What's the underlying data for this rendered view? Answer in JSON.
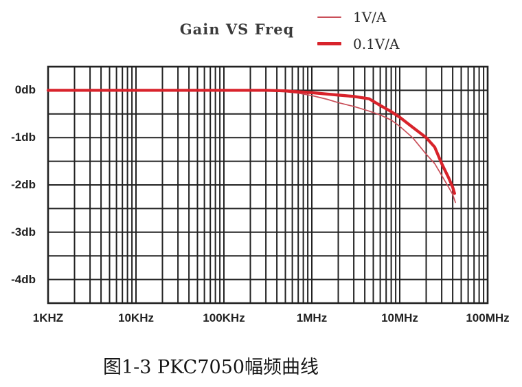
{
  "figure": {
    "caption": "图1-3 PKC7050幅频曲线"
  },
  "chart_data": {
    "type": "line",
    "title": "Gain VS Freq",
    "xlabel": "",
    "ylabel": "",
    "x_scale": "log",
    "xlim": [
      1000,
      100000000
    ],
    "ylim": [
      -4.5,
      0.5
    ],
    "grid": "on",
    "grid_step_db": 0.5,
    "grid_color": "#222222",
    "legend_position": "top-right",
    "x_ticks": [
      {
        "f": 1000,
        "label": "1KHZ"
      },
      {
        "f": 10000,
        "label": "10KHz"
      },
      {
        "f": 100000,
        "label": "100KHz"
      },
      {
        "f": 1000000,
        "label": "1MHz"
      },
      {
        "f": 10000000,
        "label": "10MHz"
      },
      {
        "f": 100000000,
        "label": "100MHz"
      }
    ],
    "y_ticks": [
      {
        "db": 0,
        "label": "0db"
      },
      {
        "db": -1,
        "label": "-1db"
      },
      {
        "db": -2,
        "label": "-2db"
      },
      {
        "db": -3,
        "label": "-3db"
      },
      {
        "db": -4,
        "label": "-4db"
      }
    ],
    "series": [
      {
        "name": "1V/A",
        "color": "#c94f59",
        "stroke_px": 1.7,
        "points": [
          [
            1000,
            0
          ],
          [
            10000,
            0
          ],
          [
            100000,
            0
          ],
          [
            300000,
            -0.01
          ],
          [
            500000,
            -0.03
          ],
          [
            700000,
            -0.06
          ],
          [
            1000000,
            -0.11
          ],
          [
            1500000,
            -0.19
          ],
          [
            2000000,
            -0.26
          ],
          [
            3000000,
            -0.34
          ],
          [
            4500000,
            -0.44
          ],
          [
            6000000,
            -0.52
          ],
          [
            8000000,
            -0.63
          ],
          [
            10000000,
            -0.76
          ],
          [
            14000000,
            -1.0
          ],
          [
            20000000,
            -1.35
          ],
          [
            25000000,
            -1.55
          ],
          [
            30000000,
            -1.8
          ],
          [
            36000000,
            -2.05
          ],
          [
            40000000,
            -2.2
          ],
          [
            43000000,
            -2.37
          ]
        ]
      },
      {
        "name": "0.1V/A",
        "color": "#d8232b",
        "stroke_px": 4.3,
        "points": [
          [
            1000,
            0
          ],
          [
            10000,
            0
          ],
          [
            100000,
            0
          ],
          [
            300000,
            0
          ],
          [
            500000,
            -0.01
          ],
          [
            700000,
            -0.03
          ],
          [
            1000000,
            -0.05
          ],
          [
            1500000,
            -0.08
          ],
          [
            2000000,
            -0.1
          ],
          [
            3000000,
            -0.13
          ],
          [
            4500000,
            -0.18
          ],
          [
            6000000,
            -0.32
          ],
          [
            8000000,
            -0.45
          ],
          [
            10000000,
            -0.57
          ],
          [
            14000000,
            -0.78
          ],
          [
            20000000,
            -1.0
          ],
          [
            25000000,
            -1.2
          ],
          [
            30000000,
            -1.55
          ],
          [
            36000000,
            -1.85
          ],
          [
            40000000,
            -2.05
          ],
          [
            42000000,
            -2.18
          ]
        ]
      }
    ]
  }
}
